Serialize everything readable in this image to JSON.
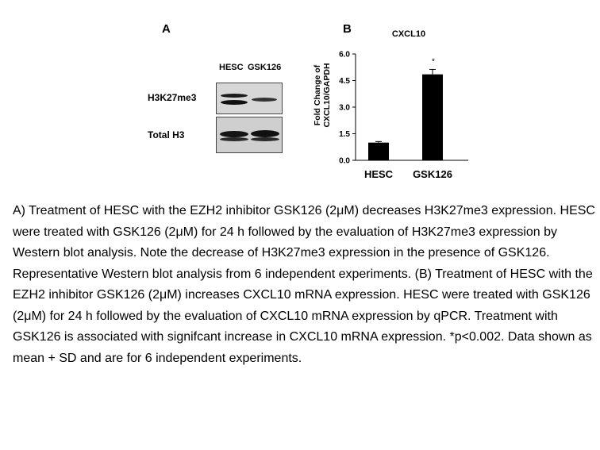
{
  "panel_a": {
    "label": "A",
    "lanes": [
      "HESC",
      "GSK126"
    ],
    "rows": [
      "H3K27me3",
      "Total H3"
    ]
  },
  "panel_b": {
    "label": "B"
  },
  "chart_data": {
    "type": "bar",
    "title": "CXCL10",
    "categories": [
      "HESC",
      "GSK126"
    ],
    "values": [
      1.0,
      4.85
    ],
    "errors": [
      0.06,
      0.28
    ],
    "annotations": [
      "",
      "*"
    ],
    "ylabel": "Fold Change of CXCL10/GAPDH",
    "xlabel": "",
    "ylim": [
      0,
      6.0
    ],
    "yticks": [
      0.0,
      1.5,
      3.0,
      4.5,
      6.0
    ],
    "ytick_labels": [
      "0.0",
      "1.5",
      "3.0",
      "4.5",
      "6.0"
    ],
    "bar_color": "#000000",
    "grid": false
  },
  "caption": "A) Treatment of HESC with the EZH2 inhibitor GSK126 (2μM) decreases H3K27me3 expression. HESC were treated with GSK126 (2μM) for 24 h followed by the evaluation of H3K27me3 expression by Western blot analysis. Note the decrease of H3K27me3 expression in the presence of GSK126. Representative Western blot analysis from 6 independent experiments. (B) Treatment of HESC with the EZH2 inhibitor GSK126 (2μM) increases CXCL10 mRNA expression. HESC were treated with GSK126 (2μM) for 24 h followed by the evaluation of CXCL10 mRNA expression by qPCR. Treatment with GSK126 is associated with signifcant increase in CXCL10 mRNA expression. *p<0.002. Data shown as mean + SD and are for 6 independent experiments."
}
